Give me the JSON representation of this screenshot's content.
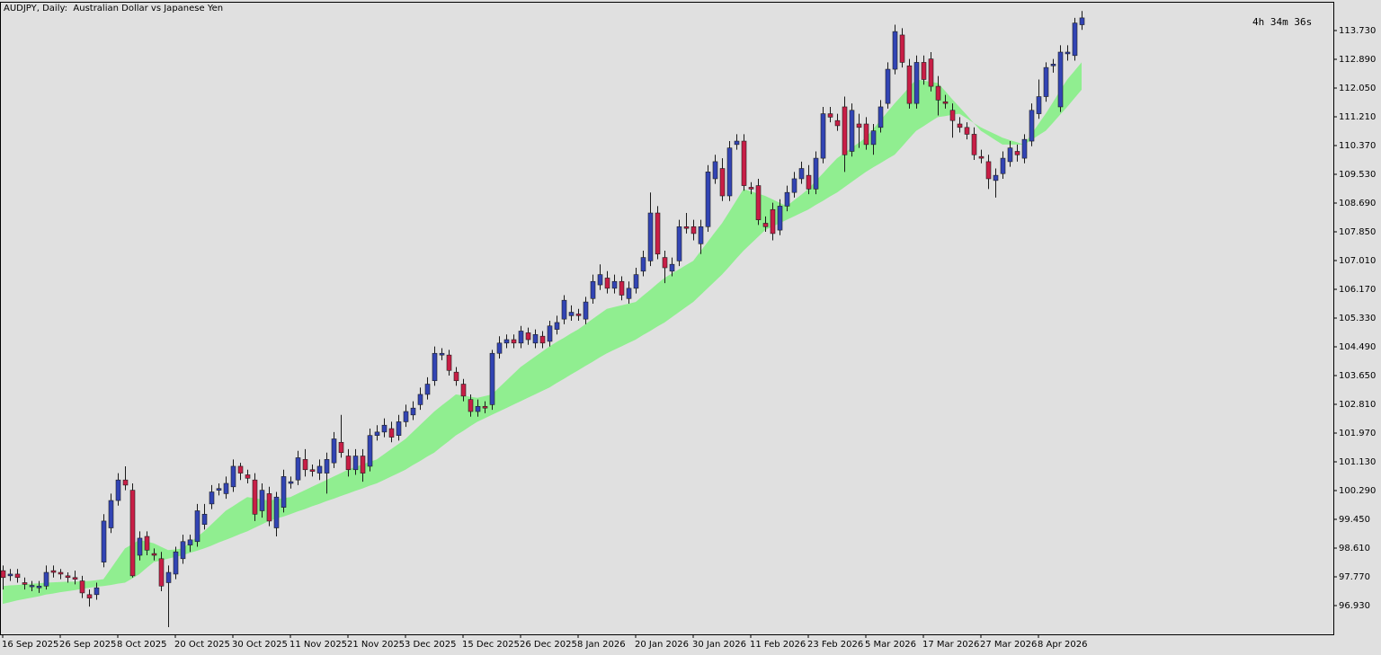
{
  "chart_data": {
    "type": "candlestick",
    "title": "AUDJPY, Daily:  Australian Dollar vs Japanese Yen",
    "timer": "4h 34m 36s",
    "up_color": "#3244b4",
    "down_color": "#c81e46",
    "band_color": "#90ee90",
    "categories": [
      "16 Sep 2025",
      null,
      null,
      null,
      null,
      null,
      null,
      null,
      "26 Sep 2025",
      null,
      null,
      null,
      null,
      null,
      null,
      null,
      "8 Oct 2025",
      null,
      null,
      null,
      null,
      null,
      null,
      null,
      "20 Oct 2025",
      null,
      null,
      null,
      null,
      null,
      null,
      null,
      "30 Oct 2025",
      null,
      null,
      null,
      null,
      null,
      null,
      null,
      "11 Nov 2025",
      null,
      null,
      null,
      null,
      null,
      null,
      null,
      "21 Nov 2025",
      null,
      null,
      null,
      null,
      null,
      null,
      null,
      "3 Dec 2025",
      null,
      null,
      null,
      null,
      null,
      null,
      null,
      "15 Dec 2025",
      null,
      null,
      null,
      null,
      null,
      null,
      null,
      "26 Dec 2025",
      null,
      null,
      null,
      null,
      null,
      null,
      null,
      "8 Jan 2026",
      null,
      null,
      null,
      null,
      null,
      null,
      null,
      "20 Jan 2026",
      null,
      null,
      null,
      null,
      null,
      null,
      null,
      "30 Jan 2026",
      null,
      null,
      null,
      null,
      null,
      null,
      null,
      "11 Feb 2026",
      null,
      null,
      null,
      null,
      null,
      null,
      null,
      "23 Feb 2026",
      null,
      null,
      null,
      null,
      null,
      null,
      null,
      "5 Mar 2026",
      null,
      null,
      null,
      null,
      null,
      null,
      null,
      "17 Mar 2026",
      null,
      null,
      null,
      null,
      null,
      null,
      null,
      "27 Mar 2026",
      null,
      null,
      null,
      null,
      null,
      null,
      null,
      "8 Apr 2026",
      null,
      null,
      null,
      null,
      null,
      null
    ],
    "open": [
      97.95,
      97.8,
      97.85,
      97.6,
      97.48,
      97.45,
      97.5,
      97.95,
      97.9,
      97.8,
      97.75,
      97.65,
      97.25,
      97.25,
      98.2,
      99.2,
      100.0,
      100.6,
      100.3,
      98.4,
      98.95,
      98.45,
      98.3,
      97.6,
      97.85,
      98.3,
      98.7,
      98.8,
      99.3,
      99.9,
      100.3,
      100.2,
      100.4,
      101.0,
      100.75,
      100.6,
      99.7,
      100.2,
      99.2,
      99.8,
      100.5,
      100.6,
      101.2,
      100.9,
      100.8,
      100.8,
      101.1,
      101.7,
      101.3,
      100.9,
      101.3,
      101.0,
      101.9,
      102.0,
      102.1,
      101.9,
      102.3,
      102.5,
      102.8,
      103.1,
      103.5,
      104.25,
      104.25,
      103.75,
      103.4,
      102.95,
      102.6,
      102.75,
      102.8,
      104.3,
      104.6,
      104.7,
      104.6,
      104.9,
      104.6,
      104.8,
      104.65,
      105.0,
      105.3,
      105.4,
      105.45,
      105.3,
      105.9,
      106.3,
      106.5,
      106.2,
      106.4,
      105.9,
      106.2,
      106.7,
      107.0,
      108.4,
      107.1,
      106.7,
      107.0,
      108.0,
      108.0,
      107.5,
      108.0,
      109.4,
      109.7,
      108.9,
      110.4,
      110.5,
      109.15,
      109.2,
      108.1,
      108.5,
      107.9,
      108.6,
      109.0,
      109.4,
      109.5,
      109.1,
      110.0,
      111.3,
      111.1,
      111.5,
      110.2,
      111.0,
      111.0,
      110.4,
      110.9,
      111.6,
      112.6,
      113.6,
      112.7,
      111.6,
      112.8,
      112.9,
      112.1,
      111.65,
      111.4,
      111.0,
      110.9,
      110.7,
      110.05,
      109.9,
      109.35,
      109.55,
      109.9,
      110.2,
      110.0,
      110.5,
      111.3,
      111.8,
      112.7,
      111.5,
      113.05,
      113.0,
      113.9
    ],
    "high": [
      98.1,
      98.0,
      98.0,
      97.75,
      97.65,
      97.65,
      98.1,
      98.1,
      98.0,
      97.9,
      97.95,
      97.8,
      97.4,
      97.6,
      99.6,
      100.2,
      100.8,
      101.0,
      100.5,
      99.1,
      99.1,
      98.6,
      98.5,
      98.1,
      98.65,
      99.0,
      99.0,
      99.9,
      99.9,
      100.45,
      100.5,
      100.7,
      101.2,
      101.1,
      100.9,
      100.8,
      100.5,
      100.4,
      100.25,
      100.9,
      100.7,
      101.45,
      101.5,
      101.05,
      101.2,
      101.4,
      102.0,
      102.5,
      101.5,
      101.5,
      101.5,
      102.1,
      102.2,
      102.4,
      102.3,
      102.5,
      102.8,
      102.9,
      103.3,
      103.6,
      104.5,
      104.45,
      104.4,
      103.9,
      103.55,
      103.1,
      102.95,
      102.9,
      104.4,
      104.8,
      104.85,
      104.85,
      105.1,
      105.05,
      105.0,
      104.95,
      105.25,
      105.4,
      106.0,
      105.7,
      105.6,
      105.95,
      106.6,
      106.9,
      106.7,
      106.6,
      106.55,
      106.4,
      106.8,
      107.3,
      109.0,
      108.6,
      107.3,
      107.1,
      108.2,
      108.4,
      108.2,
      108.2,
      109.8,
      110.1,
      110.0,
      110.5,
      110.7,
      110.7,
      109.3,
      109.4,
      108.3,
      108.7,
      108.8,
      109.2,
      109.6,
      109.9,
      109.8,
      110.2,
      111.5,
      111.5,
      111.3,
      111.8,
      111.6,
      111.3,
      111.2,
      111.0,
      111.7,
      112.8,
      113.9,
      113.8,
      112.9,
      113.0,
      113.0,
      113.1,
      112.4,
      111.85,
      111.6,
      111.2,
      111.05,
      110.9,
      110.25,
      110.1,
      109.7,
      110.2,
      110.5,
      110.4,
      110.7,
      111.6,
      112.3,
      112.8,
      112.9,
      113.3,
      113.3,
      114.1,
      114.3
    ],
    "low": [
      97.4,
      97.65,
      97.6,
      97.4,
      97.35,
      97.3,
      97.4,
      97.75,
      97.7,
      97.6,
      97.55,
      97.15,
      96.9,
      97.1,
      98.05,
      99.05,
      99.85,
      100.3,
      97.75,
      98.25,
      98.4,
      98.25,
      97.35,
      96.3,
      97.7,
      98.15,
      98.5,
      98.65,
      99.15,
      99.75,
      100.15,
      100.05,
      100.25,
      100.6,
      100.5,
      99.4,
      99.5,
      99.25,
      98.95,
      99.65,
      100.35,
      100.45,
      100.7,
      100.7,
      100.6,
      100.2,
      100.95,
      101.25,
      100.7,
      100.75,
      100.55,
      100.85,
      101.75,
      101.85,
      101.7,
      101.75,
      102.15,
      102.35,
      102.65,
      102.95,
      103.35,
      104.1,
      103.65,
      103.35,
      102.9,
      102.45,
      102.45,
      102.55,
      102.65,
      104.15,
      104.45,
      104.45,
      104.45,
      104.55,
      104.45,
      104.45,
      104.5,
      104.85,
      105.15,
      105.25,
      105.25,
      105.15,
      105.75,
      106.15,
      106.05,
      106.05,
      105.85,
      105.75,
      106.05,
      106.55,
      106.85,
      107.05,
      106.35,
      106.55,
      106.85,
      107.8,
      107.6,
      107.2,
      107.85,
      109.25,
      108.75,
      108.75,
      110.25,
      109.05,
      108.95,
      108.05,
      107.85,
      107.6,
      107.75,
      108.45,
      108.85,
      109.25,
      108.95,
      108.95,
      109.85,
      111.05,
      110.8,
      109.6,
      110.05,
      110.3,
      110.25,
      110.1,
      110.75,
      111.45,
      112.45,
      112.65,
      111.45,
      111.45,
      112.15,
      111.95,
      111.25,
      111.45,
      110.6,
      110.75,
      110.55,
      109.95,
      109.85,
      109.1,
      108.85,
      109.4,
      109.75,
      109.9,
      109.85,
      110.35,
      111.15,
      111.65,
      112.5,
      111.35,
      112.85,
      112.85,
      113.75
    ],
    "close": [
      97.75,
      97.85,
      97.75,
      97.55,
      97.52,
      97.5,
      97.9,
      97.9,
      97.85,
      97.75,
      97.7,
      97.3,
      97.15,
      97.45,
      99.4,
      100.0,
      100.6,
      100.45,
      97.8,
      98.9,
      98.55,
      98.4,
      97.5,
      97.9,
      98.5,
      98.8,
      98.85,
      99.7,
      99.6,
      100.25,
      100.35,
      100.5,
      101.0,
      100.8,
      100.65,
      99.6,
      100.3,
      99.4,
      100.1,
      100.7,
      100.55,
      101.25,
      100.9,
      100.85,
      101.0,
      101.2,
      101.8,
      101.4,
      100.9,
      101.3,
      100.8,
      101.9,
      102.0,
      102.2,
      101.85,
      102.3,
      102.6,
      102.7,
      103.1,
      103.4,
      104.3,
      104.3,
      103.8,
      103.5,
      103.05,
      102.6,
      102.75,
      102.7,
      104.3,
      104.6,
      104.7,
      104.6,
      104.95,
      104.7,
      104.85,
      104.6,
      105.1,
      105.2,
      105.85,
      105.5,
      105.4,
      105.8,
      106.4,
      106.6,
      106.2,
      106.4,
      106.0,
      106.2,
      106.6,
      107.1,
      108.4,
      107.2,
      106.8,
      106.9,
      108.0,
      107.95,
      107.8,
      108.0,
      109.6,
      109.9,
      108.9,
      110.3,
      110.5,
      109.2,
      109.1,
      108.2,
      108.0,
      107.8,
      108.6,
      109.0,
      109.4,
      109.7,
      109.1,
      110.0,
      111.3,
      111.2,
      110.95,
      110.1,
      111.4,
      110.9,
      110.4,
      110.8,
      111.5,
      112.6,
      113.7,
      112.8,
      111.6,
      112.8,
      112.3,
      112.1,
      111.7,
      111.6,
      111.1,
      110.9,
      110.7,
      110.1,
      110.0,
      109.4,
      109.5,
      110.0,
      110.3,
      110.1,
      110.55,
      111.4,
      111.8,
      112.65,
      112.75,
      113.1,
      113.1,
      113.95,
      114.1
    ],
    "band_fast": [
      97.5,
      97.52,
      97.53,
      97.55,
      97.57,
      97.58,
      97.6,
      97.61,
      97.62,
      97.63,
      97.63,
      97.64,
      97.65,
      97.67,
      97.7,
      98.0,
      98.3,
      98.6,
      98.72,
      98.85,
      98.8,
      98.75,
      98.65,
      98.55,
      98.57,
      98.6,
      98.77,
      98.93,
      99.1,
      99.3,
      99.5,
      99.7,
      99.83,
      99.97,
      100.1,
      100.07,
      100.03,
      100.0,
      100.03,
      100.07,
      100.1,
      100.2,
      100.3,
      100.4,
      100.5,
      100.6,
      100.7,
      100.8,
      100.9,
      100.98,
      101.05,
      101.13,
      101.2,
      101.35,
      101.5,
      101.65,
      101.8,
      102.0,
      102.2,
      102.4,
      102.6,
      102.77,
      102.93,
      103.1,
      103.07,
      103.03,
      103.0,
      103.05,
      103.1,
      103.3,
      103.5,
      103.7,
      103.9,
      104.05,
      104.2,
      104.35,
      104.5,
      104.63,
      104.75,
      104.88,
      105.0,
      105.15,
      105.3,
      105.45,
      105.6,
      105.65,
      105.7,
      105.75,
      105.8,
      105.98,
      106.15,
      106.33,
      106.5,
      106.63,
      106.75,
      106.88,
      107.0,
      107.28,
      107.55,
      107.83,
      108.1,
      108.43,
      108.77,
      109.1,
      109.03,
      108.97,
      108.9,
      108.8,
      108.7,
      108.6,
      108.77,
      108.93,
      109.1,
      109.33,
      109.55,
      109.78,
      110.0,
      110.15,
      110.3,
      110.45,
      110.6,
      110.85,
      111.1,
      111.35,
      111.6,
      111.83,
      112.07,
      112.3,
      112.27,
      112.23,
      112.2,
      111.97,
      111.73,
      111.5,
      111.27,
      111.03,
      110.8,
      110.67,
      110.53,
      110.4,
      110.4,
      110.4,
      110.4,
      110.7,
      111.0,
      111.3,
      111.63,
      111.97,
      112.3,
      112.55,
      112.8
    ],
    "band_slow": [
      96.98,
      97.03,
      97.08,
      97.12,
      97.16,
      97.2,
      97.25,
      97.28,
      97.32,
      97.35,
      97.38,
      97.42,
      97.45,
      97.48,
      97.5,
      97.53,
      97.57,
      97.6,
      97.72,
      97.85,
      98.03,
      98.2,
      98.25,
      98.3,
      98.35,
      98.4,
      98.47,
      98.53,
      98.6,
      98.68,
      98.77,
      98.85,
      98.93,
      99.02,
      99.1,
      99.2,
      99.3,
      99.4,
      99.47,
      99.53,
      99.6,
      99.68,
      99.75,
      99.83,
      99.9,
      99.98,
      100.05,
      100.13,
      100.2,
      100.28,
      100.35,
      100.43,
      100.5,
      100.6,
      100.7,
      100.8,
      100.9,
      101.03,
      101.15,
      101.28,
      101.4,
      101.57,
      101.73,
      101.9,
      102.03,
      102.17,
      102.3,
      102.4,
      102.5,
      102.6,
      102.7,
      102.8,
      102.9,
      103.0,
      103.1,
      103.2,
      103.3,
      103.43,
      103.55,
      103.68,
      103.8,
      103.93,
      104.05,
      104.18,
      104.3,
      104.4,
      104.5,
      104.6,
      104.7,
      104.83,
      104.95,
      105.08,
      105.2,
      105.35,
      105.5,
      105.65,
      105.8,
      106.0,
      106.2,
      106.4,
      106.6,
      106.83,
      107.07,
      107.3,
      107.5,
      107.7,
      107.9,
      108.0,
      108.1,
      108.2,
      108.3,
      108.4,
      108.5,
      108.63,
      108.75,
      108.88,
      109.0,
      109.15,
      109.3,
      109.45,
      109.6,
      109.73,
      109.85,
      109.98,
      110.1,
      110.33,
      110.57,
      110.8,
      110.93,
      111.07,
      111.2,
      111.23,
      111.27,
      111.3,
      111.17,
      111.03,
      110.9,
      110.8,
      110.7,
      110.6,
      110.53,
      110.47,
      110.4,
      110.53,
      110.67,
      110.8,
      111.03,
      111.27,
      111.5,
      111.75,
      112.0
    ],
    "ylim": [
      96.09,
      114.57
    ],
    "yticks": [
      {
        "value": 96.93,
        "label": "96.930"
      },
      {
        "value": 97.77,
        "label": "97.770"
      },
      {
        "value": 98.61,
        "label": "98.610"
      },
      {
        "value": 99.45,
        "label": "99.450"
      },
      {
        "value": 100.29,
        "label": "100.290"
      },
      {
        "value": 101.13,
        "label": "101.130"
      },
      {
        "value": 101.97,
        "label": "101.970"
      },
      {
        "value": 102.81,
        "label": "102.810"
      },
      {
        "value": 103.65,
        "label": "103.650"
      },
      {
        "value": 104.49,
        "label": "104.490"
      },
      {
        "value": 105.33,
        "label": "105.330"
      },
      {
        "value": 106.17,
        "label": "106.170"
      },
      {
        "value": 107.01,
        "label": "107.010"
      },
      {
        "value": 107.85,
        "label": "107.850"
      },
      {
        "value": 108.69,
        "label": "108.690"
      },
      {
        "value": 109.53,
        "label": "109.530"
      },
      {
        "value": 110.37,
        "label": "110.370"
      },
      {
        "value": 111.21,
        "label": "111.210"
      },
      {
        "value": 112.05,
        "label": "112.050"
      },
      {
        "value": 112.89,
        "label": "112.890"
      },
      {
        "value": 113.73,
        "label": "113.730"
      }
    ]
  }
}
